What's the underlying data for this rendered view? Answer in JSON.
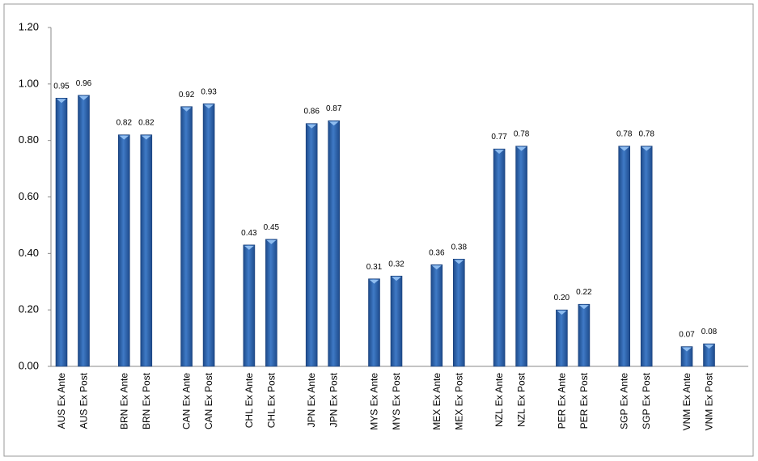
{
  "chart_data": {
    "type": "bar",
    "categories": [
      "AUS Ex Ante",
      "AUS Ex Post",
      "BRN Ex Ante",
      "BRN Ex Post",
      "CAN Ex Ante",
      "CAN Ex Post",
      "CHL Ex Ante",
      "CHL Ex Post",
      "JPN Ex Ante",
      "JPN Ex Post",
      "MYS Ex Ante",
      "MYS Ex Post",
      "MEX Ex Ante",
      "MEX Ex Post",
      "NZL Ex Ante",
      "NZL Ex Post",
      "PER Ex Ante",
      "PER Ex Post",
      "SGP Ex Ante",
      "SGP Ex Post",
      "VNM Ex Ante",
      "VNM Ex Post"
    ],
    "values": [
      0.95,
      0.96,
      0.82,
      0.82,
      0.92,
      0.93,
      0.43,
      0.45,
      0.86,
      0.87,
      0.31,
      0.32,
      0.36,
      0.38,
      0.77,
      0.78,
      0.2,
      0.22,
      0.78,
      0.78,
      0.07,
      0.08
    ],
    "value_labels": [
      "0.95",
      "0.96",
      "0.82",
      "0.82",
      "0.92",
      "0.93",
      "0.43",
      "0.45",
      "0.86",
      "0.87",
      "0.31",
      "0.32",
      "0.36",
      "0.38",
      "0.77",
      "0.78",
      "0.20",
      "0.22",
      "0.78",
      "0.78",
      "0.07",
      "0.08"
    ],
    "color": "#2f63ad",
    "ylim": [
      0,
      1.2
    ],
    "yticks": [
      {
        "value": 0,
        "label": "0.00"
      },
      {
        "value": 0.2,
        "label": "0.20"
      },
      {
        "value": 0.4,
        "label": "0.40"
      },
      {
        "value": 0.6,
        "label": "0.60"
      },
      {
        "value": 0.8,
        "label": "0.80"
      },
      {
        "value": 1,
        "label": "1.00"
      },
      {
        "value": 1.2,
        "label": "1.20"
      }
    ],
    "grid": false
  }
}
